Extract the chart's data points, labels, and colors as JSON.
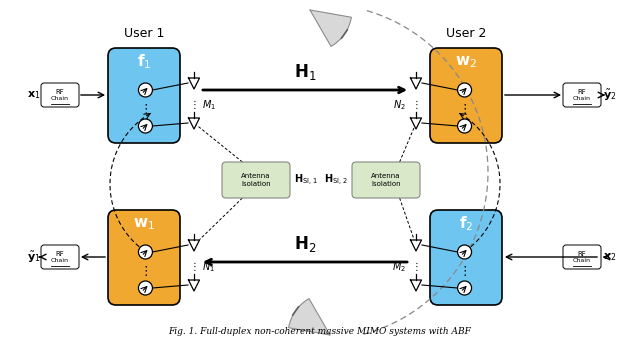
{
  "title": "Fig. 1. Full-duplex non-coherent massive MIMO systems with ABF",
  "blue_color": "#6EC6F0",
  "orange_color": "#F0A830",
  "isolation_color": "#D8E8C8",
  "bg_color": "#FFFFFF",
  "user1_label": "User 1",
  "user2_label": "User 2",
  "f1_label": "$\\mathbf{f}_1$",
  "w2_label": "$\\mathbf{w}_2$",
  "w1_label": "$\\mathbf{w}_1$",
  "f2_label": "$\\mathbf{f}_2$",
  "H1_label": "$\\mathbf{H}_1$",
  "H2_label": "$\\mathbf{H}_2$",
  "HSI1_label": "$\\mathbf{H}_{\\mathrm{SI},1}$",
  "HSI2_label": "$\\mathbf{H}_{\\mathrm{SI},2}$",
  "M1_label": "$M_1$",
  "N2_label": "$N_2$",
  "N1_label": "$N_1$",
  "M2_label": "$M_2$",
  "x1_label": "$\\mathbf{x}_1$",
  "x2_label": "$\\mathbf{x}_2$",
  "y1_label": "$\\tilde{\\mathbf{y}}_1$",
  "y2_label": "$\\tilde{\\mathbf{y}}_2$"
}
